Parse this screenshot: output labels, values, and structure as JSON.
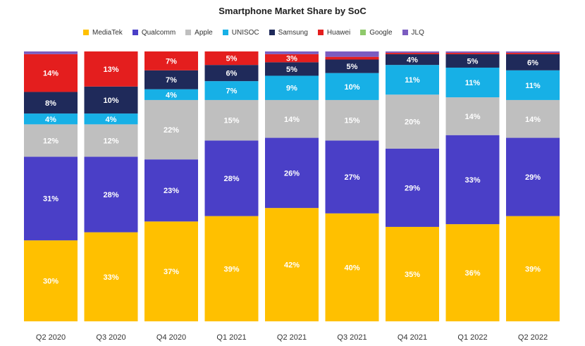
{
  "chart_data": {
    "type": "bar",
    "stacked": true,
    "title": "Smartphone Market Share by SoC",
    "xlabel": "",
    "ylabel": "",
    "ylim": [
      0,
      100
    ],
    "grid": false,
    "legend_position": "top",
    "categories": [
      "Q2 2020",
      "Q3 2020",
      "Q4 2020",
      "Q1 2021",
      "Q2 2021",
      "Q3 2021",
      "Q4 2021",
      "Q1 2022",
      "Q2 2022"
    ],
    "series": [
      {
        "name": "MediaTek",
        "color": "#FFC000",
        "values": [
          30,
          33,
          37,
          39,
          42,
          40,
          35,
          36,
          39
        ],
        "labels": [
          "30%",
          "33%",
          "37%",
          "39%",
          "42%",
          "40%",
          "35%",
          "36%",
          "39%"
        ]
      },
      {
        "name": "Qualcomm",
        "color": "#4A3FC7",
        "values": [
          31,
          28,
          23,
          28,
          26,
          27,
          29,
          33,
          29
        ],
        "labels": [
          "31%",
          "28%",
          "23%",
          "28%",
          "26%",
          "27%",
          "29%",
          "33%",
          "29%"
        ]
      },
      {
        "name": "Apple",
        "color": "#BFBFBF",
        "values": [
          12,
          12,
          22,
          15,
          14,
          15,
          20,
          14,
          14
        ],
        "labels": [
          "12%",
          "12%",
          "22%",
          "15%",
          "14%",
          "15%",
          "20%",
          "14%",
          "14%"
        ]
      },
      {
        "name": "UNISOC",
        "color": "#17B0E6",
        "values": [
          4,
          4,
          4,
          7,
          9,
          10,
          11,
          11,
          11
        ],
        "labels": [
          "4%",
          "4%",
          "4%",
          "7%",
          "9%",
          "10%",
          "11%",
          "11%",
          "11%"
        ]
      },
      {
        "name": "Samsung",
        "color": "#1F2A5A",
        "values": [
          8,
          10,
          7,
          6,
          5,
          5,
          4,
          5,
          6
        ],
        "labels": [
          "8%",
          "10%",
          "7%",
          "6%",
          "5%",
          "5%",
          "4%",
          "5%",
          "6%"
        ]
      },
      {
        "name": "Huawei",
        "color": "#E41E1E",
        "values": [
          14,
          13,
          7,
          5,
          3,
          1,
          0.5,
          0.5,
          0.5
        ],
        "labels": [
          "14%",
          "13%",
          "7%",
          "5%",
          "3%",
          "",
          "",
          "",
          ""
        ]
      },
      {
        "name": "Google",
        "color": "#8FC96B",
        "values": [
          0,
          0,
          0,
          0,
          0,
          0,
          0,
          0,
          0
        ],
        "labels": [
          "",
          "",
          "",
          "",
          "",
          "",
          "",
          "",
          ""
        ]
      },
      {
        "name": "JLQ",
        "color": "#7B5CC0",
        "values": [
          1,
          0,
          0,
          0,
          1,
          2,
          0.5,
          0.5,
          0.5
        ],
        "labels": [
          "",
          "",
          "",
          "",
          "",
          "",
          "",
          "",
          ""
        ]
      }
    ]
  }
}
